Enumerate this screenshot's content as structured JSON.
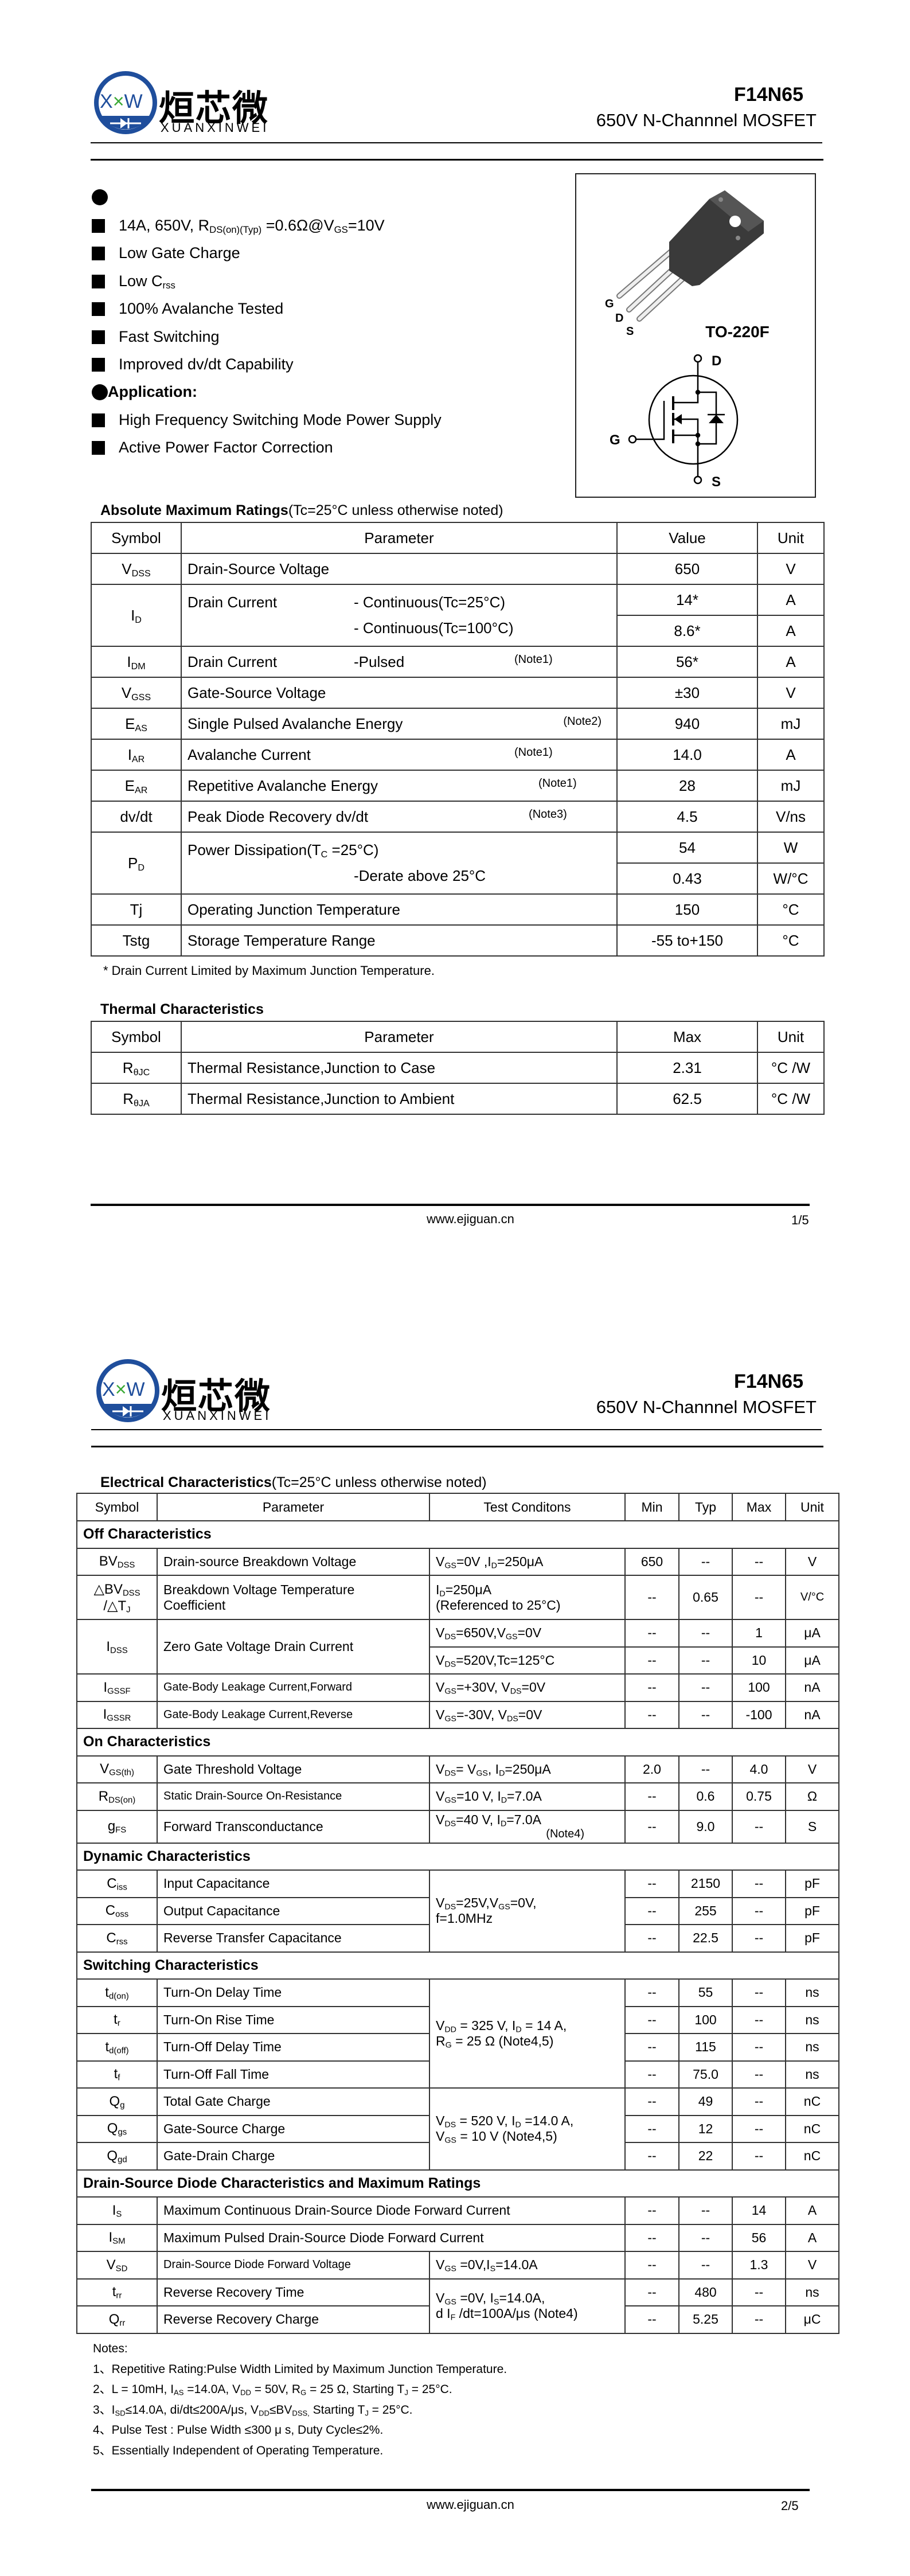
{
  "header": {
    "logo_mark": "XXW",
    "logo_cn": "烜芯微",
    "logo_en": "XUANXINWEI",
    "part_number": "F14N65",
    "subtitle": "650V N-Channnel MOSFET",
    "brand_blue": "#1f4e9c",
    "brand_green": "#3aa935"
  },
  "features": {
    "items": [
      "14A, 650V, R_{DS(on)(Typ)} =0.6Ω@V_{GS}=10V",
      "Low Gate Charge",
      "Low C_{rss}",
      "100% Avalanche Tested",
      "Fast Switching",
      "Improved dv/dt Capability"
    ],
    "application_title": "Application:",
    "applications": [
      "High Frequency Switching Mode Power Supply",
      "Active Power Factor Correction"
    ]
  },
  "package": {
    "name": "TO-220F",
    "pins": [
      "G",
      "D",
      "S"
    ],
    "symbol_labels": {
      "d": "D",
      "g": "G",
      "s": "S"
    }
  },
  "abs_max": {
    "title_bold": "Absolute Maximum Ratings",
    "title_rest": "(Tc=25°C unless otherwise noted)",
    "headers": [
      "Symbol",
      "Parameter",
      "Value",
      "Unit"
    ],
    "rows": [
      {
        "sym": "V_{DSS}",
        "label": "Drain-Source Voltage",
        "detail": [],
        "note": "",
        "values": [
          [
            "650",
            "V"
          ]
        ]
      },
      {
        "sym": "I_{D}",
        "label": "Drain Current",
        "detail": [
          "- Continuous(Tc=25°C)",
          "- Continuous(Tc=100°C)"
        ],
        "note": "",
        "values": [
          [
            "14*",
            "A"
          ],
          [
            "8.6*",
            "A"
          ]
        ]
      },
      {
        "sym": "I_{DM}",
        "label": "Drain Current",
        "detail": [
          "-Pulsed"
        ],
        "note": "(Note1)",
        "values": [
          [
            "56*",
            "A"
          ]
        ]
      },
      {
        "sym": "V_{GSS}",
        "label": "Gate-Source Voltage",
        "detail": [],
        "note": "",
        "values": [
          [
            "±30",
            "V"
          ]
        ]
      },
      {
        "sym": "E_{AS}",
        "label": "Single Pulsed Avalanche Energy",
        "detail": [],
        "note": "(Note2)",
        "values": [
          [
            "940",
            "mJ"
          ]
        ]
      },
      {
        "sym": "I_{AR}",
        "label": "Avalanche Current",
        "detail": [],
        "note": "(Note1)",
        "values": [
          [
            "14.0",
            "A"
          ]
        ]
      },
      {
        "sym": "E_{AR}",
        "label": "Repetitive Avalanche Energy",
        "detail": [],
        "note": "(Note1)",
        "values": [
          [
            "28",
            "mJ"
          ]
        ]
      },
      {
        "sym": "dv/dt",
        "label": "Peak Diode Recovery dv/dt",
        "detail": [],
        "note": "(Note3)",
        "values": [
          [
            "4.5",
            "V/ns"
          ]
        ]
      },
      {
        "sym": "P_{D}",
        "label": "Power Dissipation(T_{C} =25°C)",
        "detail": [
          "",
          "-Derate above 25°C"
        ],
        "note": "",
        "values": [
          [
            "54",
            "W"
          ],
          [
            "0.43",
            "W/°C"
          ]
        ]
      },
      {
        "sym": "Tj",
        "label": "Operating Junction Temperature",
        "detail": [],
        "note": "",
        "values": [
          [
            "150",
            "°C"
          ]
        ]
      },
      {
        "sym": "Tstg",
        "label": "Storage Temperature Range",
        "detail": [],
        "note": "",
        "values": [
          [
            "-55 to+150",
            "°C"
          ]
        ]
      }
    ],
    "footnote": "* Drain Current Limited by Maximum Junction Temperature."
  },
  "thermal": {
    "title": "Thermal Characteristics",
    "headers": [
      "Symbol",
      "Parameter",
      "Max",
      "Unit"
    ],
    "rows": [
      {
        "sym": "R_{θJC}",
        "param": "Thermal Resistance,Junction to Case",
        "max": "2.31",
        "unit": "°C /W"
      },
      {
        "sym": "R_{θJA}",
        "param": "Thermal Resistance,Junction to Ambient",
        "max": "62.5",
        "unit": "°C /W"
      }
    ]
  },
  "electrical": {
    "title_bold": "Electrical Characteristics",
    "title_rest": "(Tc=25°C unless otherwise noted)",
    "headers": [
      "Symbol",
      "Parameter",
      "Test Conditons",
      "Min",
      "Typ",
      "Max",
      "Unit"
    ],
    "rows": [
      {
        "section": "Off Characteristics"
      },
      {
        "sym": "BV_{DSS}",
        "param": "Drain-source Breakdown Voltage",
        "cond": [
          "V_{GS}=0V ,I_{D}=250μA"
        ],
        "min": "650",
        "typ": "--",
        "max": "--",
        "unit": "V"
      },
      {
        "sym": "△BV_{DSS}\n/△T_{J}",
        "param": "Breakdown Voltage Temperature\nCoefficient",
        "cond": [
          "I_{D}=250μA",
          "(Referenced to 25°C)"
        ],
        "min": "--",
        "typ": "0.65",
        "max": "--",
        "unit": "V/°C",
        "tall": true
      },
      {
        "sym": "I_{DSS}",
        "sym_rowspan": 2,
        "param": "Zero Gate Voltage Drain Current",
        "param_rowspan": 2,
        "cond": [
          "V_{DS}=650V,V_{GS}=0V"
        ],
        "min": "--",
        "typ": "--",
        "max": "1",
        "unit": "μA"
      },
      {
        "cond": [
          "V_{DS}=520V,Tc=125°C"
        ],
        "min": "--",
        "typ": "--",
        "max": "10",
        "unit": "μA"
      },
      {
        "sym": "I_{GSSF}",
        "param": "Gate-Body Leakage Current,Forward",
        "cond": [
          "V_{GS}=+30V, V_{DS}=0V"
        ],
        "min": "--",
        "typ": "--",
        "max": "100",
        "unit": "nA",
        "small": true
      },
      {
        "sym": "I_{GSSR}",
        "param": "Gate-Body Leakage Current,Reverse",
        "cond": [
          "V_{GS}=-30V, V_{DS}=0V"
        ],
        "min": "--",
        "typ": "--",
        "max": "-100",
        "unit": "nA",
        "small": true
      },
      {
        "section": "On Characteristics"
      },
      {
        "sym": "V_{GS(th)}",
        "param": "Gate Threshold Voltage",
        "cond": [
          "V_{DS}= V_{GS}, I_{D}=250μA"
        ],
        "min": "2.0",
        "typ": "--",
        "max": "4.0",
        "unit": "V"
      },
      {
        "sym": "R_{DS(on)}",
        "param": "Static Drain-Source On-Resistance",
        "cond": [
          "V_{GS}=10 V, I_{D}=7.0A"
        ],
        "min": "--",
        "typ": "0.6",
        "max": "0.75",
        "unit": "Ω",
        "small": true
      },
      {
        "sym": "g_{FS}",
        "param": "Forward Transconductance",
        "cond": [
          "V_{DS}=40 V, I_{D}=7.0A",
          "(Note4)"
        ],
        "min": "--",
        "typ": "9.0",
        "max": "--",
        "unit": "S",
        "mid": true
      },
      {
        "section": "Dynamic Characteristics"
      },
      {
        "sym": "C_{iss}",
        "param": "Input Capacitance",
        "cond": [
          "V_{DS}=25V,V_{GS}=0V,",
          "f=1.0MHz"
        ],
        "cond_rowspan": 3,
        "min": "--",
        "typ": "2150",
        "max": "--",
        "unit": "pF"
      },
      {
        "sym": "C_{oss}",
        "param": "Output Capacitance",
        "min": "--",
        "typ": "255",
        "max": "--",
        "unit": "pF"
      },
      {
        "sym": "C_{rss}",
        "param": "Reverse Transfer Capacitance",
        "min": "--",
        "typ": "22.5",
        "max": "--",
        "unit": "pF"
      },
      {
        "section": "Switching Characteristics"
      },
      {
        "sym": "t_{d(on)}",
        "param": "Turn-On Delay Time",
        "cond": [
          "V_{DD} = 325 V, I_{D} = 14 A,",
          "R_{G} = 25 Ω     (Note4,5)"
        ],
        "cond_rowspan": 4,
        "min": "--",
        "typ": "55",
        "max": "--",
        "unit": "ns"
      },
      {
        "sym": "t_{r}",
        "param": "Turn-On Rise Time",
        "min": "--",
        "typ": "100",
        "max": "--",
        "unit": "ns"
      },
      {
        "sym": "t_{d(off)}",
        "param": "Turn-Off Delay Time",
        "min": "--",
        "typ": "115",
        "max": "--",
        "unit": "ns"
      },
      {
        "sym": "t_{f}",
        "param": "Turn-Off Fall Time",
        "min": "--",
        "typ": "75.0",
        "max": "--",
        "unit": "ns"
      },
      {
        "sym": "Q_{g}",
        "param": "Total Gate Charge",
        "cond": [
          "V_{DS} = 520 V, I_{D} =14.0 A,",
          "V_{GS} = 10 V    (Note4,5)"
        ],
        "cond_rowspan": 3,
        "min": "--",
        "typ": "49",
        "max": "--",
        "unit": "nC"
      },
      {
        "sym": "Q_{gs}",
        "param": "Gate-Source Charge",
        "min": "--",
        "typ": "12",
        "max": "--",
        "unit": "nC"
      },
      {
        "sym": "Q_{gd}",
        "param": "Gate-Drain Charge",
        "min": "--",
        "typ": "22",
        "max": "--",
        "unit": "nC"
      },
      {
        "section": "Drain-Source Diode Characteristics and Maximum Ratings"
      },
      {
        "sym": "I_{S}",
        "param": "Maximum Continuous Drain-Source Diode Forward Current",
        "wide": true,
        "min": "--",
        "typ": "--",
        "max": "14",
        "unit": "A"
      },
      {
        "sym": "I_{SM}",
        "param": "Maximum Pulsed Drain-Source Diode Forward Current",
        "wide": true,
        "min": "--",
        "typ": "--",
        "max": "56",
        "unit": "A"
      },
      {
        "sym": "V_{SD}",
        "param": "Drain-Source Diode Forward Voltage",
        "cond": [
          "V_{GS} =0V,I_{S}=14.0A"
        ],
        "min": "--",
        "typ": "--",
        "max": "1.3",
        "unit": "V",
        "small": true
      },
      {
        "sym": "t_{rr}",
        "param": "Reverse Recovery Time",
        "cond": [
          "V_{GS} =0V, I_{S}=14.0A,",
          "d I_{F} /dt=100A/μs (Note4)"
        ],
        "cond_rowspan": 2,
        "min": "--",
        "typ": "480",
        "max": "--",
        "unit": "ns"
      },
      {
        "sym": "Q_{rr}",
        "param": "Reverse Recovery Charge",
        "min": "--",
        "typ": "5.25",
        "max": "--",
        "unit": "μC"
      }
    ]
  },
  "notes": {
    "title": "Notes:",
    "items": [
      "1、Repetitive Rating:Pulse Width Limited by Maximum Junction Temperature.",
      "2、L = 10mH, I_{AS} =14.0A, V_{DD} = 50V, R_{G} = 25 Ω, Starting T_{J} = 25°C.",
      "3、I_{SD}≤14.0A, di/dt≤200A/μs, V_{DD}≤BV_{DSS,} Starting T_{J} = 25°C.",
      "4、Pulse Test : Pulse Width ≤300 μ s, Duty Cycle≤2%.",
      "5、Essentially Independent of Operating Temperature."
    ]
  },
  "footer": {
    "url": "www.ejiguan.cn",
    "page1": "1/5",
    "page2": "2/5"
  }
}
